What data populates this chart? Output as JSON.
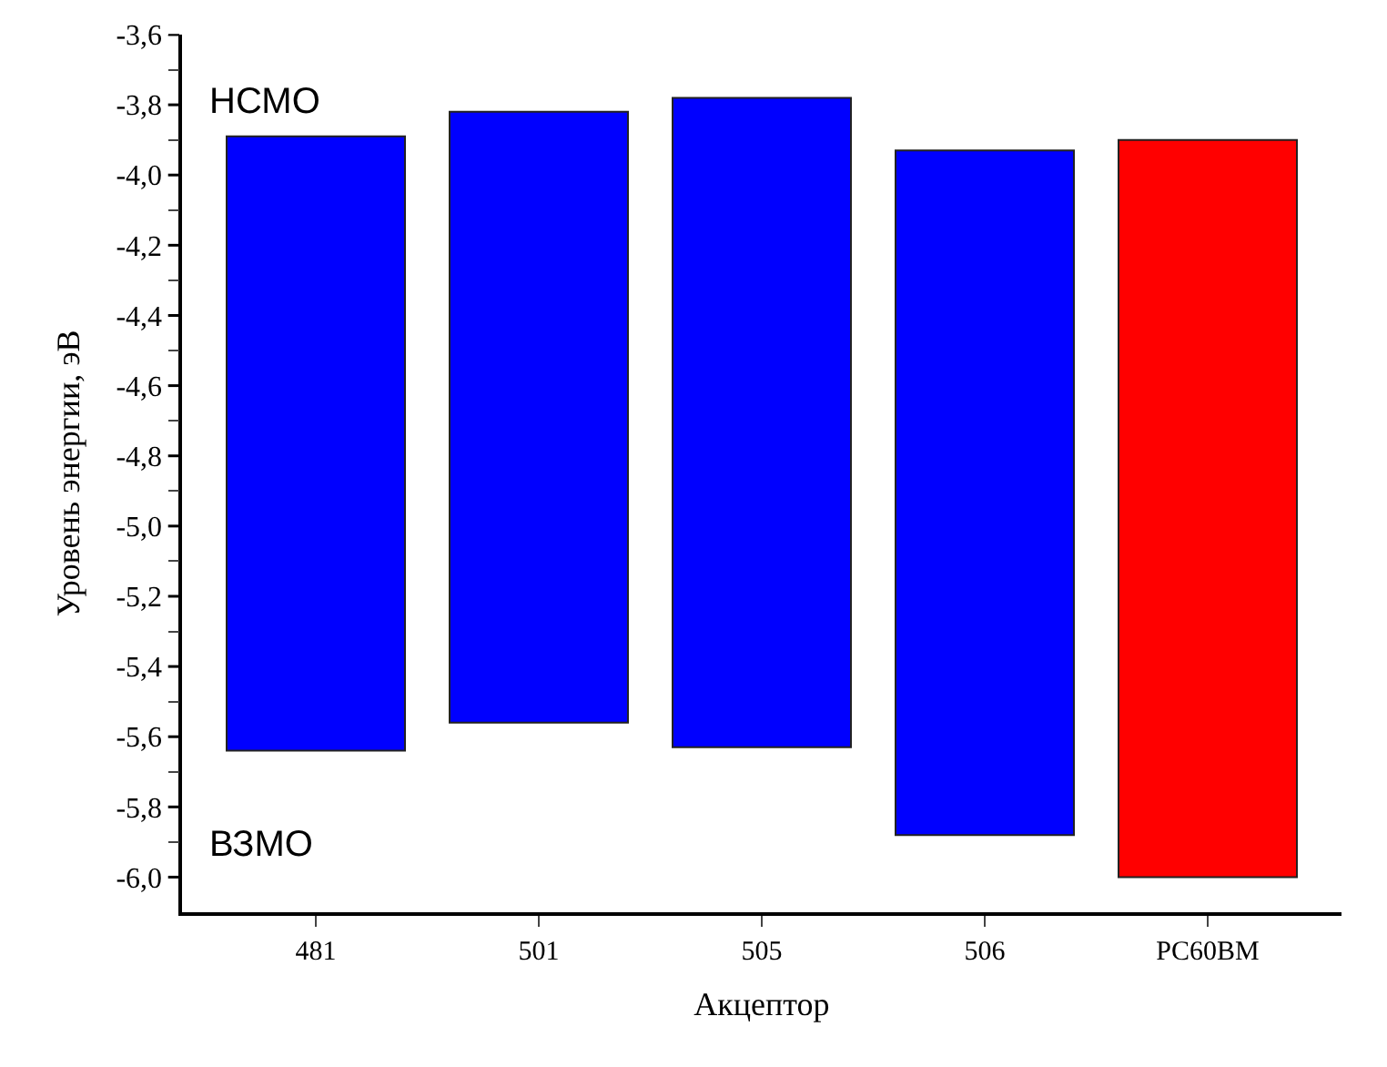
{
  "chart_data": {
    "type": "bar",
    "xlabel": "Акцептор",
    "ylabel": "Уровень энергии, эВ",
    "categories": [
      "481",
      "501",
      "505",
      "506",
      "PC60BM"
    ],
    "values": [
      1.75,
      1.74,
      1.85,
      1.95,
      2.1
    ],
    "base": [
      -5.64,
      -5.56,
      -5.63,
      -5.88,
      -6.0
    ],
    "colors": [
      "#0000ff",
      "#0000ff",
      "#0000ff",
      "#0000ff",
      "#ff0000"
    ],
    "ylim": [
      -6.1,
      -3.6
    ],
    "yticks": [
      {
        "value": -3.6,
        "label": "-3,6"
      },
      {
        "value": -3.7,
        "label": null
      },
      {
        "value": -3.8,
        "label": "-3,8"
      },
      {
        "value": -3.9,
        "label": null
      },
      {
        "value": -4.0,
        "label": "-4,0"
      },
      {
        "value": -4.1,
        "label": null
      },
      {
        "value": -4.2,
        "label": "-4,2"
      },
      {
        "value": -4.3,
        "label": null
      },
      {
        "value": -4.4,
        "label": "-4,4"
      },
      {
        "value": -4.5,
        "label": null
      },
      {
        "value": -4.6,
        "label": "-4,6"
      },
      {
        "value": -4.7,
        "label": null
      },
      {
        "value": -4.8,
        "label": "-4,8"
      },
      {
        "value": -4.9,
        "label": null
      },
      {
        "value": -5.0,
        "label": "-5,0"
      },
      {
        "value": -5.1,
        "label": null
      },
      {
        "value": -5.2,
        "label": "-5,2"
      },
      {
        "value": -5.3,
        "label": null
      },
      {
        "value": -5.4,
        "label": "-5,4"
      },
      {
        "value": -5.5,
        "label": null
      },
      {
        "value": -5.6,
        "label": "-5,6"
      },
      {
        "value": -5.7,
        "label": null
      },
      {
        "value": -5.8,
        "label": "-5,8"
      },
      {
        "value": -5.9,
        "label": null
      },
      {
        "value": -6.0,
        "label": "-6,0"
      }
    ],
    "annotations": [
      "НСМО",
      "ВЗМО"
    ]
  }
}
